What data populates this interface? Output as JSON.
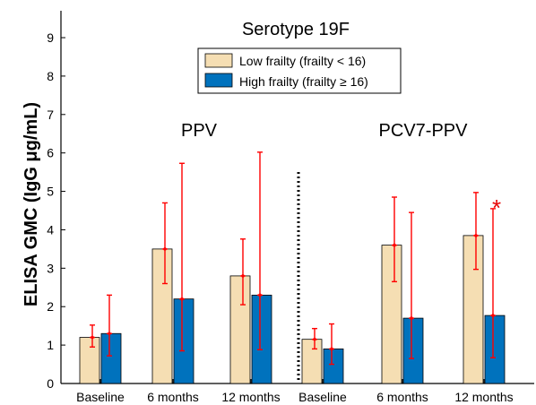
{
  "chart_data": {
    "type": "bar",
    "title": "Serotype 19F",
    "ylabel": "ELISA GMC (IgG μg/mL)",
    "xlabel": "",
    "ylim": [
      0,
      9.7
    ],
    "yticks": [
      0,
      1,
      2,
      3,
      4,
      5,
      6,
      7,
      8,
      9
    ],
    "grid": false,
    "legend_position": "top-center",
    "groups": [
      {
        "label": "PPV",
        "categories": [
          "Baseline",
          "6 months",
          "12 months"
        ],
        "series": [
          {
            "name": "Low frailty (frailty < 16)",
            "color": "#F5DEB3",
            "values": [
              1.2,
              3.5,
              2.8
            ],
            "error_low": [
              0.95,
              2.6,
              2.05
            ],
            "error_high": [
              1.52,
              4.7,
              3.76
            ]
          },
          {
            "name": "High frailty (frailty ≥ 16)",
            "color": "#0072BD",
            "values": [
              1.3,
              2.2,
              2.3
            ],
            "error_low": [
              0.72,
              0.85,
              0.88
            ],
            "error_high": [
              2.3,
              5.73,
              6.02
            ]
          }
        ]
      },
      {
        "label": "PCV7-PPV",
        "categories": [
          "Baseline",
          "6 months",
          "12 months"
        ],
        "series": [
          {
            "name": "Low frailty (frailty < 16)",
            "color": "#F5DEB3",
            "values": [
              1.15,
              3.6,
              3.85
            ],
            "error_low": [
              0.9,
              2.65,
              2.97
            ],
            "error_high": [
              1.43,
              4.85,
              4.97
            ]
          },
          {
            "name": "High frailty (frailty ≥ 16)",
            "color": "#0072BD",
            "values": [
              0.9,
              1.7,
              1.77
            ],
            "error_low": [
              0.5,
              0.65,
              0.67
            ],
            "error_high": [
              1.55,
              4.45,
              4.55
            ]
          }
        ]
      }
    ],
    "annotations": [
      {
        "text": "*",
        "color": "#E60000",
        "group": 1,
        "category": 2,
        "series": 1
      }
    ],
    "legend": [
      {
        "label": "Low frailty (frailty < 16)",
        "color": "#F5DEB3"
      },
      {
        "label": "High frailty (frailty ≥ 16)",
        "color": "#0072BD"
      }
    ],
    "error_bar_color": "#FF0000",
    "divider": "dotted vertical line between groups"
  }
}
